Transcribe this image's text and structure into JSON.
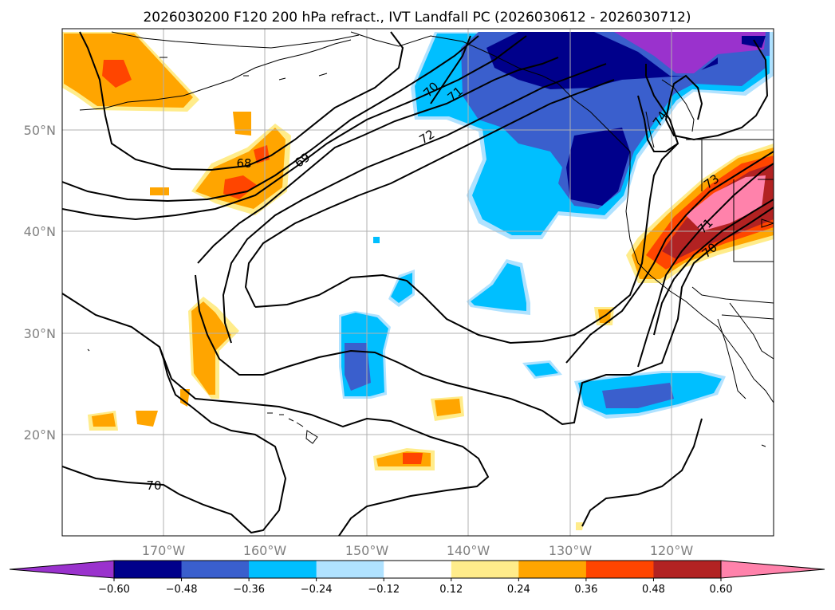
{
  "title": "2026030200 F120 200 hPa refract., IVT Landfall PC (2026030612 - 2026030712)",
  "lat_labels": [
    "50°N",
    "40°N",
    "30°N",
    "20°N"
  ],
  "lon_labels": [
    "170°W",
    "160°W",
    "150°W",
    "140°W",
    "130°W",
    "120°W"
  ],
  "contour_labels": [
    "70",
    "71",
    "72",
    "68",
    "69",
    "74",
    "73",
    "71",
    "70",
    "70"
  ],
  "colorbar": {
    "ticks": [
      "−0.60",
      "−0.48",
      "−0.36",
      "−0.24",
      "−0.12",
      "0.12",
      "0.24",
      "0.36",
      "0.48",
      "0.60"
    ],
    "colors": [
      "#9a32cd",
      "#00008b",
      "#3a5fcd",
      "#00bfff",
      "#b0e2ff",
      "#ffffff",
      "#ffec8b",
      "#ffa500",
      "#ff4500",
      "#b22222",
      "#ff82ab"
    ]
  },
  "colors": {
    "land": "#ffffff",
    "grid": "#b0b0b0",
    "contour": "#000000"
  }
}
